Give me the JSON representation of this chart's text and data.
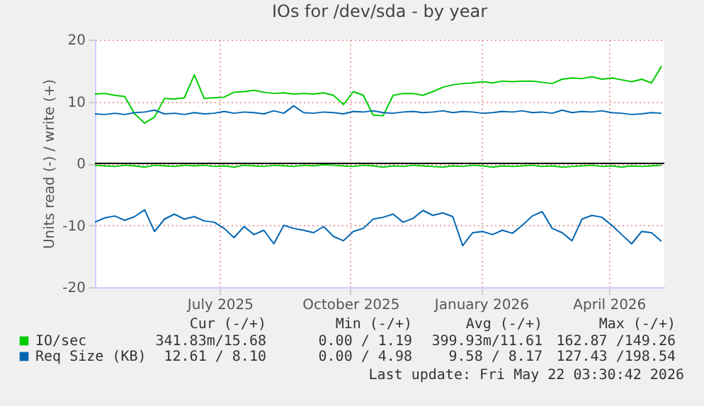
{
  "chart_data": {
    "type": "line",
    "title": "IOs for /dev/sda - by year",
    "ylabel": "Units read (-) / write (+)",
    "x": [
      "2025-04-04",
      "2025-04-11",
      "2025-04-18",
      "2025-04-25",
      "2025-05-02",
      "2025-05-09",
      "2025-05-16",
      "2025-05-23",
      "2025-05-30",
      "2025-06-06",
      "2025-06-13",
      "2025-06-20",
      "2025-06-27",
      "2025-07-04",
      "2025-07-11",
      "2025-07-18",
      "2025-07-25",
      "2025-08-01",
      "2025-08-08",
      "2025-08-15",
      "2025-08-22",
      "2025-08-29",
      "2025-09-05",
      "2025-09-12",
      "2025-09-19",
      "2025-09-26",
      "2025-10-03",
      "2025-10-10",
      "2025-10-17",
      "2025-10-24",
      "2025-10-31",
      "2025-11-07",
      "2025-11-14",
      "2025-11-21",
      "2025-11-28",
      "2025-12-05",
      "2025-12-12",
      "2025-12-19",
      "2025-12-26",
      "2026-01-02",
      "2026-01-09",
      "2026-01-16",
      "2026-01-23",
      "2026-01-30",
      "2026-02-06",
      "2026-02-13",
      "2026-02-20",
      "2026-02-27",
      "2026-03-06",
      "2026-03-13",
      "2026-03-20",
      "2026-03-27",
      "2026-04-03",
      "2026-04-10",
      "2026-04-17",
      "2026-04-24",
      "2026-05-01",
      "2026-05-08"
    ],
    "series": [
      {
        "name": "IO/sec",
        "color": "#00cc00",
        "values": [
          11.2,
          11.3,
          11.0,
          10.8,
          8.0,
          6.5,
          7.5,
          10.5,
          10.4,
          10.6,
          14.3,
          10.5,
          10.6,
          10.7,
          11.5,
          11.6,
          11.8,
          11.5,
          11.3,
          11.4,
          11.2,
          11.3,
          11.2,
          11.4,
          11.0,
          9.5,
          11.6,
          11.0,
          7.8,
          7.7,
          11.0,
          11.3,
          11.3,
          11.0,
          11.6,
          12.3,
          12.7,
          12.9,
          13.0,
          13.2,
          13.0,
          13.3,
          13.2,
          13.3,
          13.3,
          13.1,
          12.9,
          13.6,
          13.8,
          13.7,
          14.0,
          13.6,
          13.8,
          13.5,
          13.2,
          13.6,
          13.0,
          15.7
        ]
      },
      {
        "color": "#00cc00",
        "values": [
          -0.3,
          -0.4,
          -0.5,
          -0.3,
          -0.4,
          -0.6,
          -0.3,
          -0.4,
          -0.5,
          -0.3,
          -0.4,
          -0.3,
          -0.5,
          -0.4,
          -0.6,
          -0.3,
          -0.4,
          -0.5,
          -0.3,
          -0.4,
          -0.5,
          -0.3,
          -0.4,
          -0.2,
          -0.3,
          -0.4,
          -0.5,
          -0.3,
          -0.4,
          -0.6,
          -0.4,
          -0.5,
          -0.3,
          -0.4,
          -0.5,
          -0.6,
          -0.4,
          -0.5,
          -0.3,
          -0.4,
          -0.6,
          -0.4,
          -0.5,
          -0.4,
          -0.3,
          -0.5,
          -0.4,
          -0.6,
          -0.5,
          -0.4,
          -0.3,
          -0.5,
          -0.4,
          -0.6,
          -0.4,
          -0.5,
          -0.4,
          -0.3
        ]
      },
      {
        "name": "Req Size (KB)",
        "color": "#0066b3",
        "values": [
          8.0,
          7.9,
          8.1,
          7.9,
          8.2,
          8.3,
          8.6,
          8.0,
          8.1,
          7.9,
          8.2,
          8.0,
          8.1,
          8.4,
          8.1,
          8.3,
          8.2,
          8.0,
          8.5,
          8.1,
          9.3,
          8.2,
          8.1,
          8.3,
          8.2,
          8.0,
          8.4,
          8.3,
          8.5,
          8.2,
          8.1,
          8.3,
          8.4,
          8.2,
          8.3,
          8.5,
          8.2,
          8.4,
          8.3,
          8.1,
          8.2,
          8.4,
          8.3,
          8.5,
          8.2,
          8.3,
          8.1,
          8.6,
          8.2,
          8.4,
          8.3,
          8.5,
          8.2,
          8.1,
          7.9,
          8.0,
          8.2,
          8.1
        ]
      },
      {
        "color": "#0066b3",
        "values": [
          -9.5,
          -8.8,
          -8.5,
          -9.2,
          -8.6,
          -7.5,
          -11.0,
          -9.0,
          -8.2,
          -9.0,
          -8.6,
          -9.3,
          -9.5,
          -10.5,
          -12.0,
          -10.2,
          -11.5,
          -10.8,
          -13.0,
          -10.0,
          -10.5,
          -10.8,
          -11.2,
          -10.2,
          -11.8,
          -12.5,
          -11.0,
          -10.5,
          -9.0,
          -8.7,
          -8.2,
          -9.5,
          -8.9,
          -7.6,
          -8.4,
          -8.0,
          -8.6,
          -13.3,
          -11.2,
          -11.0,
          -11.5,
          -10.8,
          -11.3,
          -10.0,
          -8.5,
          -7.8,
          -10.5,
          -11.2,
          -12.5,
          -9.0,
          -8.4,
          -8.7,
          -10.0,
          -11.5,
          -13.0,
          -11.0,
          -11.2,
          -12.6
        ]
      }
    ],
    "xlim": [
      "2025-04-04",
      "2026-05-10"
    ],
    "xticks": [
      {
        "value": "2025-07-01",
        "label": "July 2025"
      },
      {
        "value": "2025-10-01",
        "label": "October 2025"
      },
      {
        "value": "2026-01-01",
        "label": "January 2026"
      },
      {
        "value": "2026-04-01",
        "label": "April 2026"
      }
    ],
    "ylim": [
      -20,
      20
    ],
    "yticks": [
      -20,
      -10,
      0,
      10,
      20
    ],
    "ref_lines": [
      {
        "axis": "y",
        "value": 0,
        "color": "#000000"
      }
    ],
    "grid": true,
    "legend": "bottom",
    "annotations": [
      "Cur (-/+)",
      "Min (-/+)",
      "Avg (-/+)",
      "Max (-/+)",
      "341.83m/15.68",
      "0.00 / 1.19",
      "399.93m/11.61",
      "162.87 /149.26",
      "12.61 / 8.10",
      "0.00 / 4.98",
      "9.58 / 8.17",
      "127.43 /198.54",
      "Last update: Fri May 22 03:30:42 2026"
    ]
  }
}
